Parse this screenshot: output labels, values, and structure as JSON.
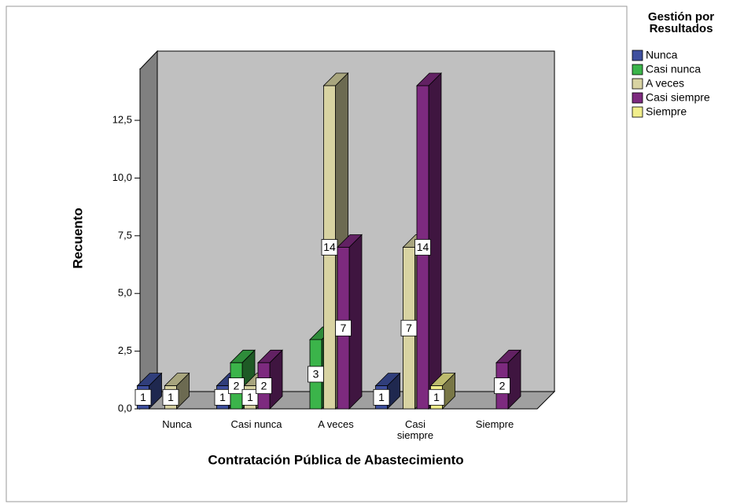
{
  "chart_data": {
    "type": "bar3d",
    "x_label": "Contratación Pública de Abastecimiento",
    "y_label": "Recuento",
    "legend_title": "Gestión por Resultados",
    "categories": [
      "Nunca",
      "Casi nunca",
      "A veces",
      "Casi siempre",
      "Siempre"
    ],
    "series": [
      {
        "name": "Nunca",
        "color": "#3e4f9e",
        "values": [
          1,
          1,
          null,
          1,
          null
        ]
      },
      {
        "name": "Casi nunca",
        "color": "#3bb44a",
        "values": [
          null,
          2,
          3,
          null,
          null
        ]
      },
      {
        "name": "A veces",
        "color": "#d8d3a2",
        "values": [
          1,
          1,
          14,
          7,
          null
        ]
      },
      {
        "name": "Casi siempre",
        "color": "#7d2a7f",
        "values": [
          null,
          2,
          7,
          14,
          2
        ]
      },
      {
        "name": "Siempre",
        "color": "#f1ee8c",
        "values": [
          null,
          null,
          null,
          1,
          null
        ]
      }
    ],
    "ylim": [
      0,
      14.75
    ],
    "yticks": [
      {
        "value": 0,
        "label": "0,0"
      },
      {
        "value": 2.5,
        "label": "2,5"
      },
      {
        "value": 5,
        "label": "5,0"
      },
      {
        "value": 7.5,
        "label": "7,5"
      },
      {
        "value": 10,
        "label": "10,0"
      },
      {
        "value": 12.5,
        "label": "12,5"
      }
    ]
  }
}
